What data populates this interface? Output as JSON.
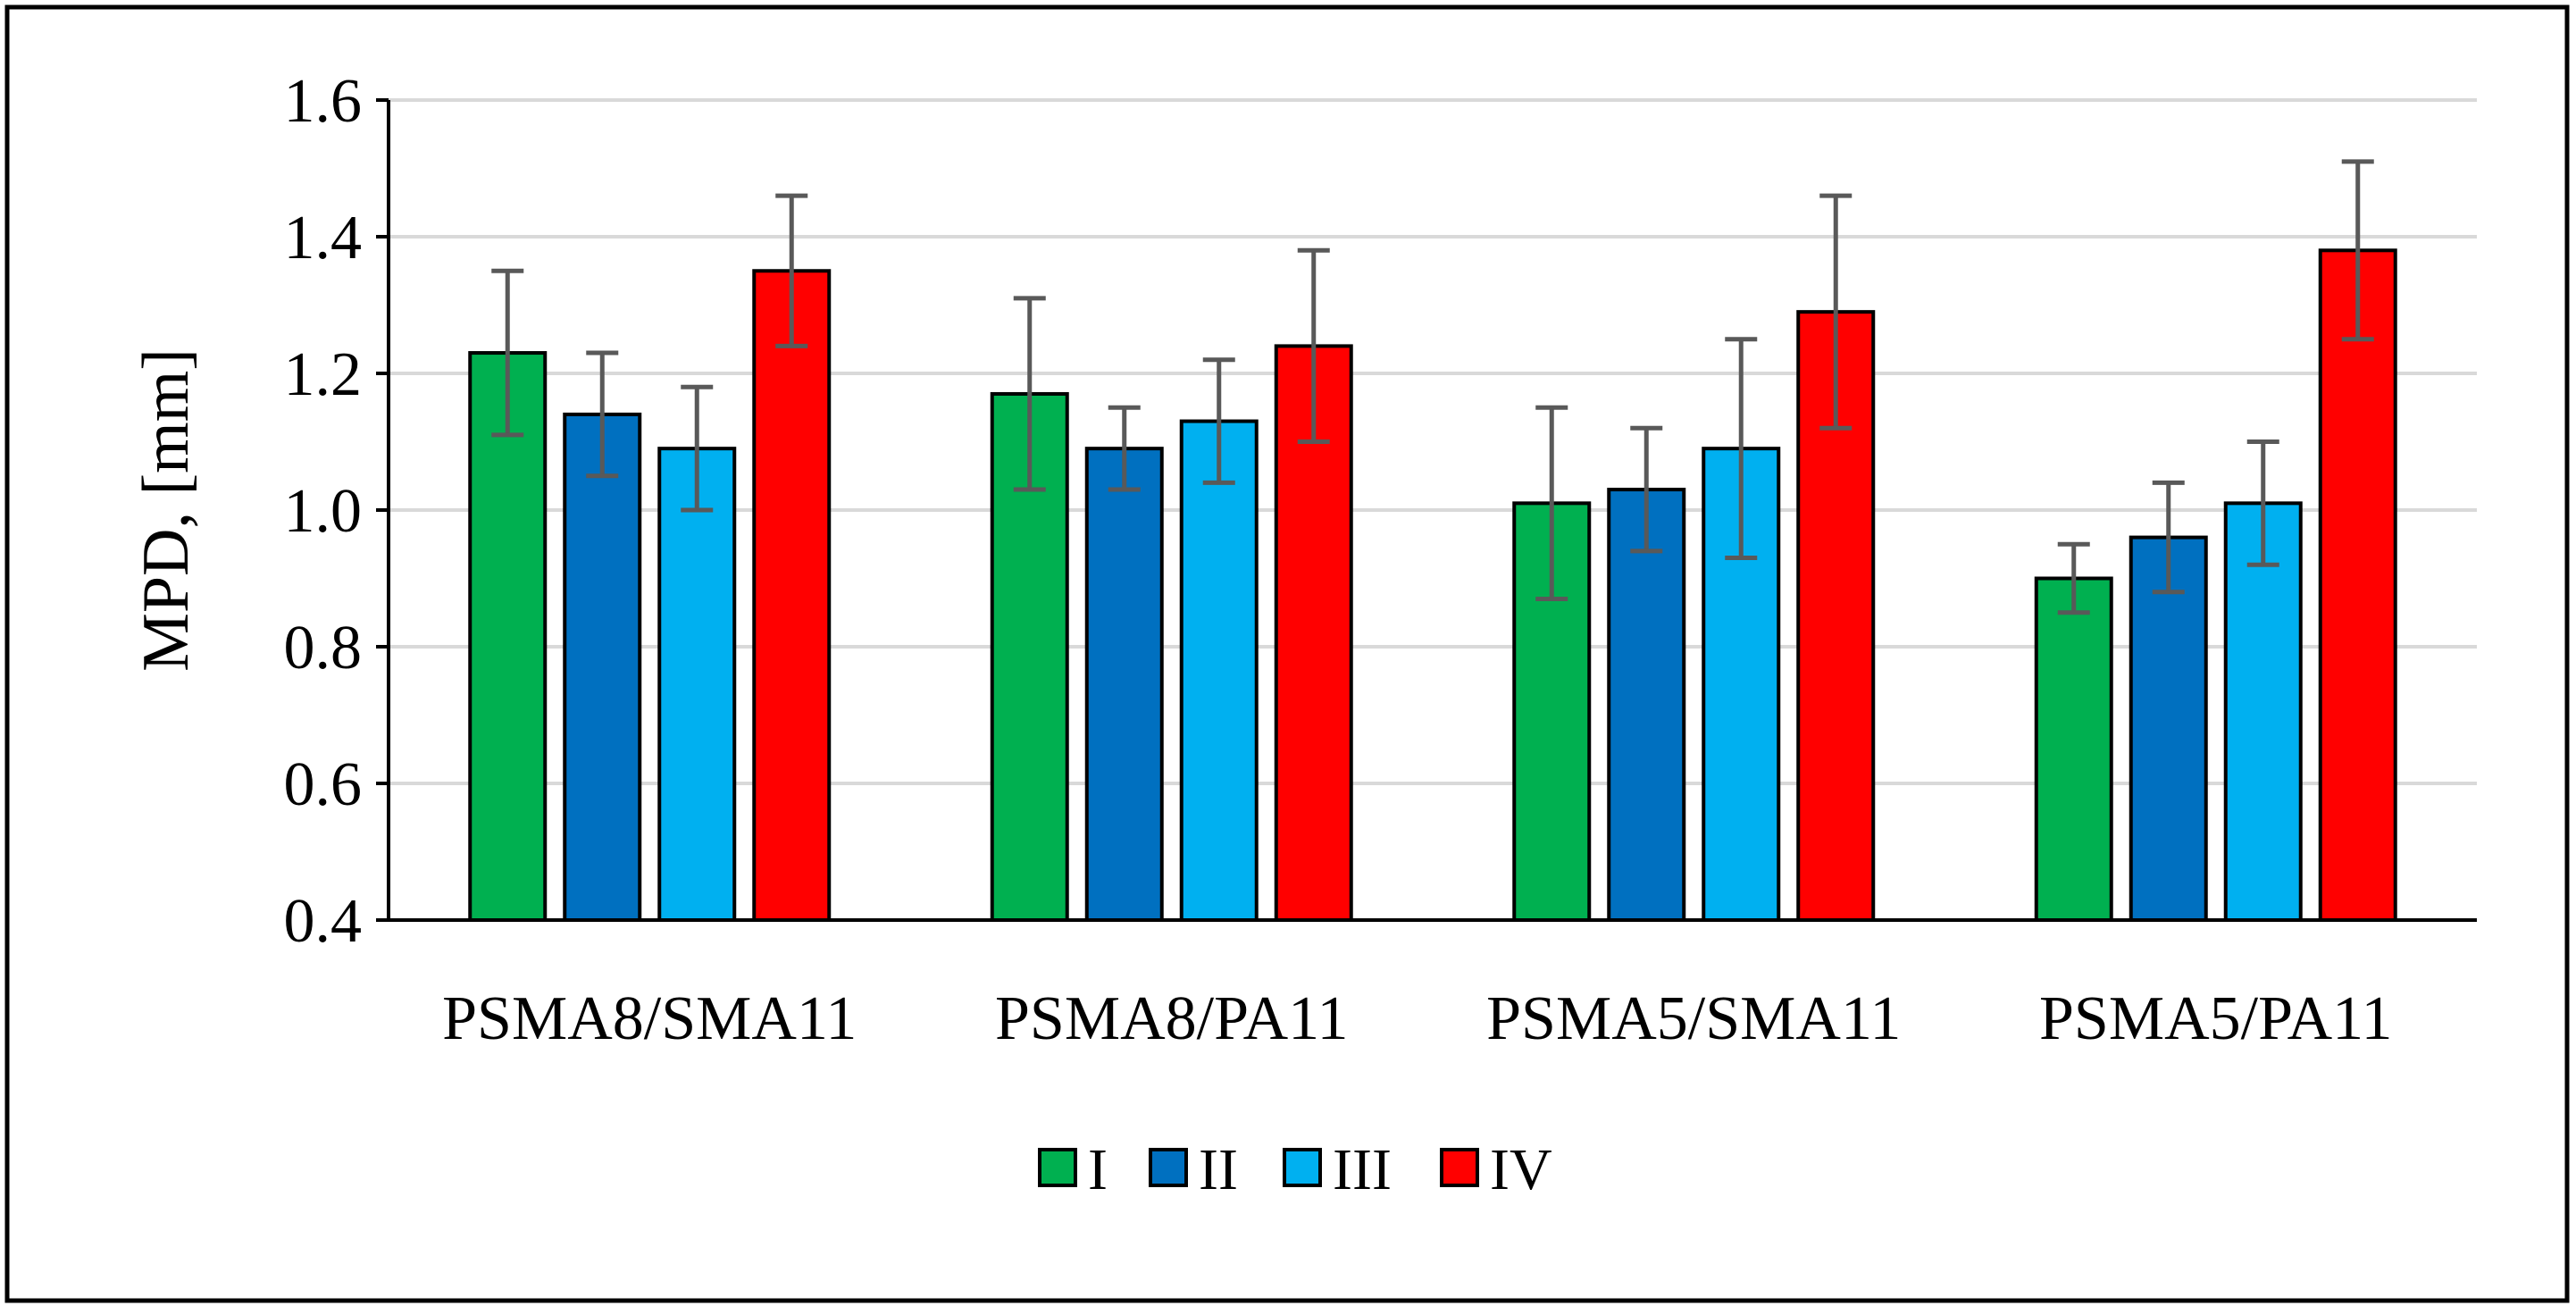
{
  "chart_data": {
    "type": "bar",
    "title": "",
    "xlabel": "",
    "ylabel": "MPD, [mm]",
    "ylim": [
      0.4,
      1.6
    ],
    "yticks": [
      "0.4",
      "0.6",
      "0.8",
      "1.0",
      "1.2",
      "1.4",
      "1.6"
    ],
    "grid": true,
    "legend_position": "bottom-center",
    "categories": [
      "PSMA8/SMA11",
      "PSMA8/PA11",
      "PSMA5/SMA11",
      "PSMA5/PA11"
    ],
    "series": [
      {
        "name": "I",
        "color": "#00B050",
        "values": [
          1.23,
          1.17,
          1.01,
          0.9
        ],
        "err_low": [
          1.11,
          1.03,
          0.87,
          0.85
        ],
        "err_high": [
          1.35,
          1.31,
          1.15,
          0.95
        ]
      },
      {
        "name": "II",
        "color": "#0070C0",
        "values": [
          1.14,
          1.09,
          1.03,
          0.96
        ],
        "err_low": [
          1.05,
          1.03,
          0.94,
          0.88
        ],
        "err_high": [
          1.23,
          1.15,
          1.12,
          1.04
        ]
      },
      {
        "name": "III",
        "color": "#00B0F0",
        "values": [
          1.09,
          1.13,
          1.09,
          1.01
        ],
        "err_low": [
          1.0,
          1.04,
          0.93,
          0.92
        ],
        "err_high": [
          1.18,
          1.22,
          1.25,
          1.1
        ]
      },
      {
        "name": "IV",
        "color": "#FF0000",
        "values": [
          1.35,
          1.24,
          1.29,
          1.38
        ],
        "err_low": [
          1.24,
          1.1,
          1.12,
          1.25
        ],
        "err_high": [
          1.46,
          1.38,
          1.46,
          1.51
        ]
      }
    ],
    "colors": {
      "gridline": "#D9D9D9",
      "errorbar": "#595959",
      "bar_outline": "#000000",
      "frame": "#000000"
    }
  }
}
